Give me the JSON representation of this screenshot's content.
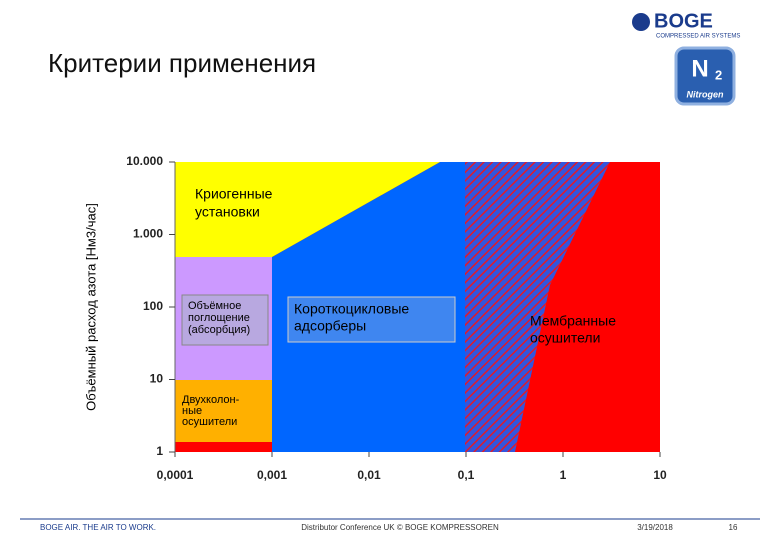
{
  "header": {
    "title": "Критерии применения"
  },
  "logo": {
    "brand": "BOGE",
    "tagline": "COMPRESSED AIR SYSTEMS"
  },
  "badge": {
    "symbol": "N",
    "subscript": "2",
    "label": "Nitrogen"
  },
  "chart_data": {
    "type": "region",
    "y_label": "Объёмный расход азота [Нм3/час]",
    "log_x": true,
    "log_y": true,
    "xlim": [
      0.0001,
      10
    ],
    "ylim": [
      1,
      10000
    ],
    "xticks": [
      {
        "value": 0.0001,
        "label": "0,0001"
      },
      {
        "value": 0.001,
        "label": "0,001"
      },
      {
        "value": 0.01,
        "label": "0,01"
      },
      {
        "value": 0.1,
        "label": "0,1"
      },
      1,
      10
    ],
    "yticks": [
      1,
      10,
      100,
      {
        "value": 1000,
        "label": "1.000"
      },
      {
        "value": 10000,
        "label": "10.000"
      }
    ],
    "regions": [
      {
        "lines": [
          "Криогенные",
          "установки"
        ],
        "color": "#ffff00"
      },
      {
        "lines": [
          "Объёмное",
          "поглощение",
          "(абсорбция)"
        ],
        "color": "#cc99ff"
      },
      {
        "lines": [
          "Короткоцикловые",
          "адсорберы"
        ],
        "color": "#0066ff"
      },
      {
        "lines": [
          "Мембранные",
          "осушители"
        ],
        "color": "#ff0000"
      },
      {
        "lines": [
          "Двухколон-",
          "ные",
          "осушители"
        ],
        "color": "#ffb000"
      }
    ]
  },
  "footer": {
    "left": "BOGE AIR. THE AIR TO WORK.",
    "center": "Distributor Conference UK © BOGE KOMPRESSOREN",
    "date": "3/19/2018",
    "page": "16"
  }
}
